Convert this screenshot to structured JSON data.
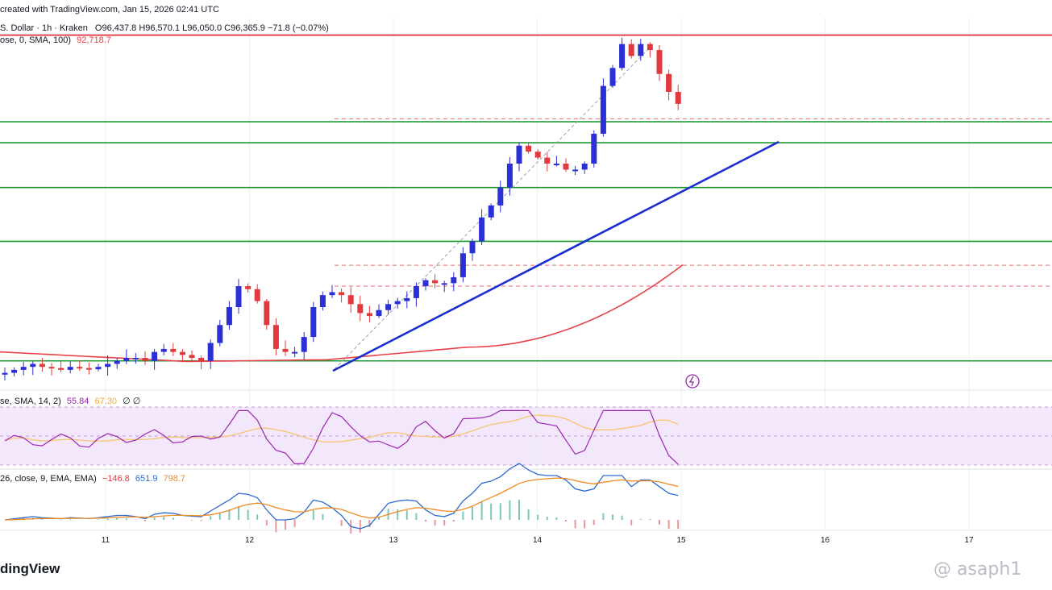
{
  "header": {
    "created": "created with TradingView.com, Jan 15, 2026 02:41 UTC",
    "symbol_prefix": "S. Dollar · 1h · Kraken",
    "ohlc": "O96,437.8  H96,570.1  L96,050.0  C96,365.9  −71.8 (−0.07%)",
    "sma_name": "ose, 0, SMA, 100)",
    "sma_value": "92,718.7"
  },
  "rsi_legend": {
    "name": "se, SMA, 14, 2)",
    "value": "55.84",
    "ma_value": "67.30",
    "extra": "∅ ∅"
  },
  "macd_legend": {
    "name": "26, close, 9, EMA, EMA)",
    "hist": "−146.8",
    "macd": "651.9",
    "signal": "798.7"
  },
  "brand": "dingView",
  "watermark": "@ asaph1",
  "colors": {
    "up": "#2b2fd6",
    "down": "#e03a3e",
    "resistance": "#e0222c",
    "support": "#1f9c2f",
    "trendline": "#1b2fd0",
    "sma": "#e8414a",
    "rsi": "#9c27b0",
    "rsi_ma": "#f6c570",
    "macd": "#2b6ad1",
    "signal": "#f08a24"
  },
  "chart_data": {
    "type": "candlestick",
    "x_ticks": [
      "11",
      "12",
      "13",
      "14",
      "15",
      "16",
      "17"
    ],
    "candles_close_approx": [
      94800,
      94850,
      94900,
      94950,
      94900,
      94880,
      94850,
      94900,
      94880,
      94860,
      94900,
      94950,
      95000,
      95050,
      95050,
      95000,
      95150,
      95200,
      95150,
      95100,
      95050,
      95000,
      95300,
      95600,
      95900,
      96250,
      96200,
      96000,
      95600,
      95200,
      95150,
      95150,
      95400,
      95900,
      96100,
      96150,
      96100,
      95950,
      95800,
      95750,
      95850,
      95950,
      96000,
      96050,
      96250,
      96350,
      96300,
      96300,
      96400,
      96800,
      97000,
      97400,
      97600,
      97900,
      98300,
      98600,
      98500,
      98400,
      98300,
      98300,
      98200,
      98200,
      98300,
      98800,
      99600,
      99900,
      100300,
      100100,
      100300,
      100200,
      99800,
      99500,
      99300
    ],
    "horizontal_levels": {
      "resistance": [
        100450
      ],
      "support": [
        99000,
        98650,
        97900,
        97000,
        95000
      ],
      "dashed": [
        99050,
        96600,
        96250
      ]
    },
    "sma_period": 100,
    "rsi_period": 14,
    "rsi_last": 55.84,
    "rsi_ma_last": 67.3,
    "macd_last": 651.9,
    "signal_last": 798.7,
    "hist_last": -146.8
  }
}
